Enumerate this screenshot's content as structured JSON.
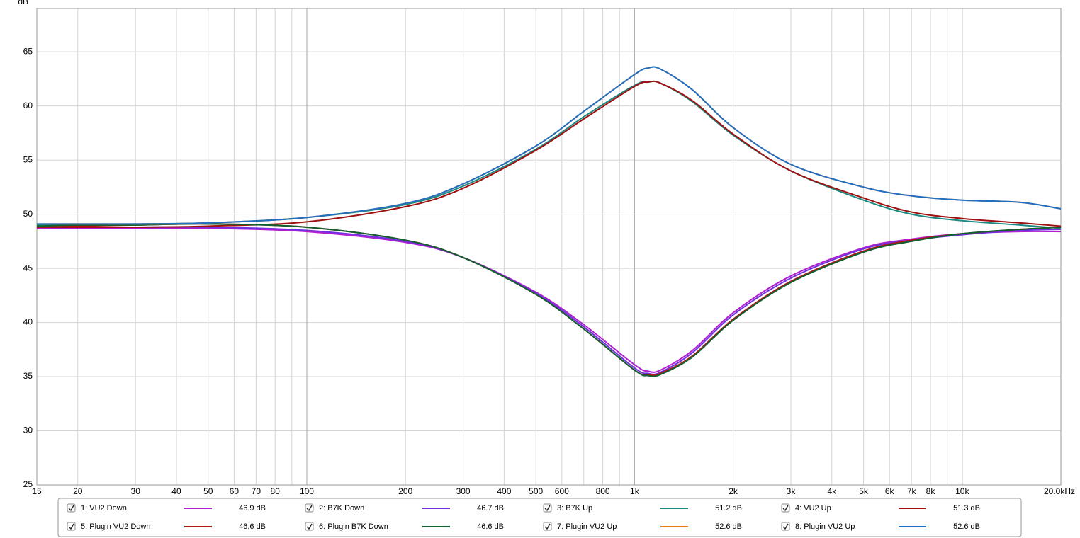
{
  "chart_data": {
    "type": "line",
    "y_label": "dB",
    "log_x": true,
    "grid": true,
    "xlim": [
      15,
      20000
    ],
    "ylim": [
      25,
      69
    ],
    "yticks": [
      25,
      30,
      35,
      40,
      45,
      50,
      55,
      60,
      65
    ],
    "xticks": [
      15,
      20,
      30,
      40,
      50,
      60,
      70,
      80,
      100,
      200,
      300,
      400,
      500,
      600,
      800,
      {
        "value": 1000,
        "label": "1k"
      },
      {
        "value": 2000,
        "label": "2k"
      },
      {
        "value": 3000,
        "label": "3k"
      },
      {
        "value": 4000,
        "label": "4k"
      },
      {
        "value": 5000,
        "label": "5k"
      },
      {
        "value": 6000,
        "label": "6k"
      },
      {
        "value": 7000,
        "label": "7k"
      },
      {
        "value": 8000,
        "label": "8k"
      },
      {
        "value": 10000,
        "label": "10k"
      },
      {
        "value": 20000,
        "label": "20.0kHz"
      }
    ],
    "xgrid_minor": [
      90,
      700,
      900,
      9000
    ],
    "xgrid_major": [
      100,
      1000,
      10000
    ],
    "x": [
      15,
      20,
      30,
      50,
      100,
      200,
      300,
      500,
      700,
      1000,
      1100,
      1200,
      1500,
      2000,
      3000,
      5000,
      7000,
      10000,
      15000,
      20000
    ],
    "series": [
      {
        "name": "1: VU2 Down",
        "color": "#b020d0",
        "level": 46.9,
        "level_label": "46.9 dB",
        "values": [
          48.7,
          48.7,
          48.7,
          48.7,
          48.4,
          47.4,
          46.0,
          42.8,
          39.8,
          36.1,
          35.5,
          35.6,
          37.4,
          40.9,
          44.3,
          46.9,
          47.7,
          48.2,
          48.4,
          48.4
        ]
      },
      {
        "name": "2: B7K Down",
        "color": "#7030e0",
        "level": 46.7,
        "level_label": "46.7 dB",
        "values": [
          48.8,
          48.8,
          48.8,
          48.8,
          48.5,
          47.5,
          46.0,
          42.7,
          39.6,
          35.8,
          35.3,
          35.4,
          37.2,
          40.7,
          44.1,
          46.8,
          47.6,
          48.1,
          48.5,
          48.6
        ]
      },
      {
        "name": "3: B7K Up",
        "color": "#1a8a80",
        "level": 51.2,
        "level_label": "51.2 dB",
        "values": [
          49.0,
          49.0,
          49.1,
          49.2,
          49.7,
          50.9,
          52.6,
          56.0,
          59.0,
          61.9,
          62.2,
          62.1,
          60.4,
          57.3,
          54.0,
          51.3,
          50.0,
          49.4,
          49.0,
          48.7
        ]
      },
      {
        "name": "4: VU2 Up",
        "color": "#a01010",
        "level": 51.3,
        "level_label": "51.3 dB",
        "values": [
          48.8,
          48.8,
          48.8,
          48.9,
          49.3,
          50.7,
          52.4,
          55.9,
          58.8,
          61.8,
          62.2,
          62.1,
          60.5,
          57.4,
          54.0,
          51.5,
          50.2,
          49.6,
          49.2,
          48.9
        ]
      },
      {
        "name": "5: Plugin VU2 Down",
        "color": "#b01515",
        "level": 46.6,
        "level_label": "46.6 dB",
        "values": [
          48.8,
          48.9,
          49.0,
          49.1,
          48.8,
          47.6,
          46.0,
          42.6,
          39.4,
          35.6,
          35.2,
          35.3,
          36.9,
          40.3,
          43.8,
          46.6,
          47.6,
          48.2,
          48.6,
          48.8
        ]
      },
      {
        "name": "6: Plugin B7K Down",
        "color": "#106030",
        "level": 46.6,
        "level_label": "46.6 dB",
        "values": [
          48.9,
          49.0,
          49.0,
          49.1,
          48.8,
          47.6,
          46.0,
          42.6,
          39.4,
          35.6,
          35.1,
          35.2,
          36.8,
          40.2,
          43.7,
          46.5,
          47.5,
          48.2,
          48.6,
          48.8
        ]
      },
      {
        "name": "7: Plugin VU2 Up",
        "color": "#e87a10",
        "level": 52.6,
        "level_label": "52.6 dB",
        "values": [
          49.1,
          49.1,
          49.1,
          49.2,
          49.7,
          51.0,
          52.8,
          56.3,
          59.5,
          62.9,
          63.5,
          63.4,
          61.5,
          58.0,
          54.6,
          52.5,
          51.7,
          51.3,
          51.1,
          50.5
        ]
      },
      {
        "name": "8: Plugin VU2 Up",
        "color": "#1f6fc5",
        "level": 52.6,
        "level_label": "52.6 dB",
        "values": [
          49.1,
          49.1,
          49.1,
          49.2,
          49.7,
          51.0,
          52.8,
          56.3,
          59.5,
          62.9,
          63.5,
          63.4,
          61.5,
          58.0,
          54.6,
          52.5,
          51.7,
          51.3,
          51.1,
          50.5
        ]
      }
    ]
  }
}
